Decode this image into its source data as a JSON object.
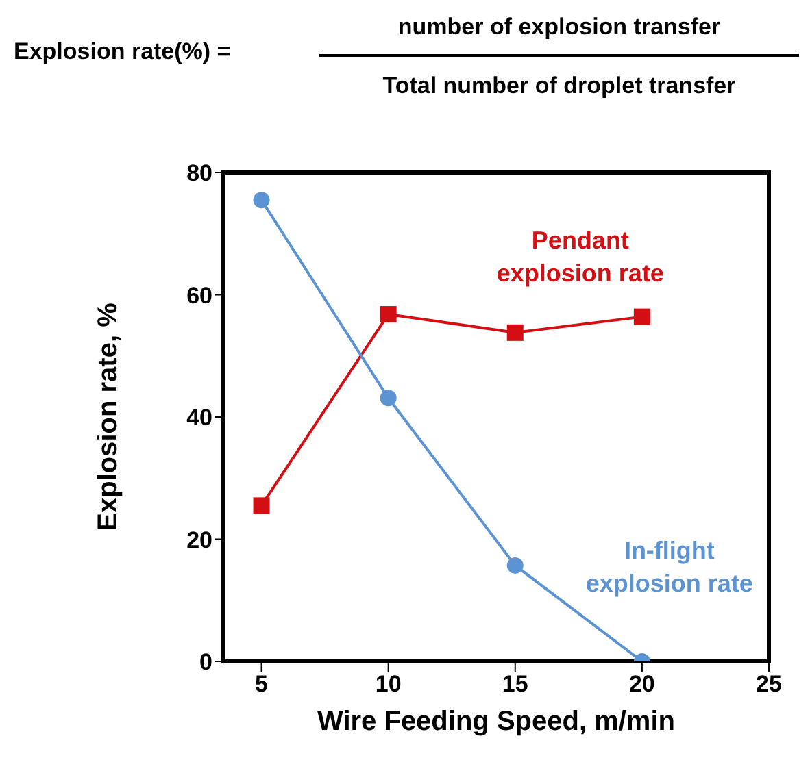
{
  "chart_data": {
    "type": "line",
    "annotations": [
      "Explosion rate(%) =",
      "number of explosion transfer",
      "Total number of droplet transfer"
    ],
    "xlabel": "Wire Feeding Speed, m/min",
    "ylabel": "Explosion rate, %",
    "x": [
      5,
      10,
      15,
      20
    ],
    "series": [
      {
        "name": "Pendant explosion rate",
        "color": "#d40f14",
        "marker": "square",
        "values": [
          25.5,
          56.8,
          53.8,
          56.4
        ]
      },
      {
        "name": "In-flight explosion rate",
        "color": "#5b93d3",
        "marker": "circle",
        "values": [
          75.5,
          43.1,
          15.7,
          0
        ]
      }
    ],
    "xlim": [
      3.5,
      25
    ],
    "xticks": [
      5,
      10,
      15,
      20,
      25
    ],
    "ylim": [
      0,
      80
    ],
    "yticks": [
      0,
      20,
      40,
      60,
      80
    ],
    "grid": false,
    "legend": false,
    "line_style": "solid"
  }
}
